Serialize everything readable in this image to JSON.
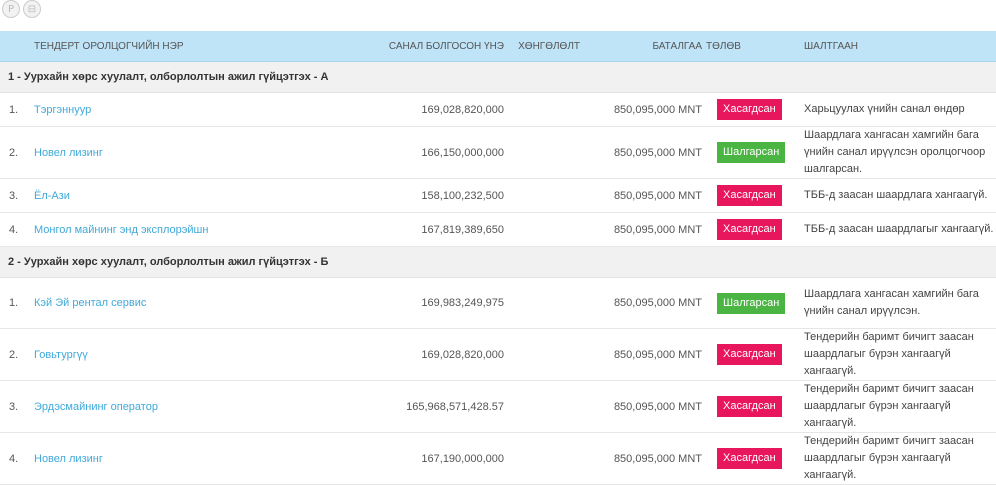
{
  "toolbar": {
    "icons": [
      {
        "name": "pdf-icon",
        "glyph": "P"
      },
      {
        "name": "document-icon",
        "glyph": "⊟"
      }
    ]
  },
  "table": {
    "headers": {
      "name": "ТЕНДЕРТ ОРОЛЦОГЧИЙН НЭР",
      "offer": "САНАЛ БОЛГОСОН ҮНЭ",
      "discount": "ХӨНГӨЛӨЛТ",
      "guarantee": "БАТАЛГАА",
      "status": "ТӨЛӨВ",
      "reason": "ШАЛТГААН"
    },
    "groups": [
      {
        "title": "1 - Уурхайн хөрс хуулалт, олборлолтын ажил гүйцэтгэх - А",
        "rows": [
          {
            "no": "1.",
            "name": "Тэргэннуур",
            "offer": "169,028,820,000",
            "discount": "",
            "guarantee": "850,095,000 MNT",
            "status": "Хасагдсан",
            "status_type": "fail",
            "reason": "Харьцуулах үнийн санал өндөр"
          },
          {
            "no": "2.",
            "name": "Новел лизинг",
            "offer": "166,150,000,000",
            "discount": "",
            "guarantee": "850,095,000 MNT",
            "status": "Шалгарсан",
            "status_type": "pass",
            "reason": "Шаардлага хангасан хамгийн бага үнийн санал ирүүлсэн оролцогчоор шалгарсан."
          },
          {
            "no": "3.",
            "name": "Ёл-Ази",
            "offer": "158,100,232,500",
            "discount": "",
            "guarantee": "850,095,000 MNT",
            "status": "Хасагдсан",
            "status_type": "fail",
            "reason": "ТББ-д заасан шаардлага хангаагүй."
          },
          {
            "no": "4.",
            "name": "Монгол майнинг энд эксплорэйшн",
            "offer": "167,819,389,650",
            "discount": "",
            "guarantee": "850,095,000 MNT",
            "status": "Хасагдсан",
            "status_type": "fail",
            "reason": "ТББ-д заасан шаардлагыг хангаагүй."
          }
        ]
      },
      {
        "title": "2 - Уурхайн хөрс хуулалт, олборлолтын ажил гүйцэтгэх - Б",
        "rows": [
          {
            "no": "1.",
            "name": "Кэй Эй рентал сервис",
            "offer": "169,983,249,975",
            "discount": "",
            "guarantee": "850,095,000 MNT",
            "status": "Шалгарсан",
            "status_type": "pass",
            "reason": "Шаардлага хангасан хамгийн бага үнийн санал ирүүлсэн."
          },
          {
            "no": "2.",
            "name": "Говьтургүү",
            "offer": "169,028,820,000",
            "discount": "",
            "guarantee": "850,095,000 MNT",
            "status": "Хасагдсан",
            "status_type": "fail",
            "reason": "Тендерийн баримт бичигт заасан шаардлагыг бүрэн хангаагүй хангаагүй."
          },
          {
            "no": "3.",
            "name": "Эрдэсмайнинг оператор",
            "offer": "165,968,571,428.57",
            "discount": "",
            "guarantee": "850,095,000 MNT",
            "status": "Хасагдсан",
            "status_type": "fail",
            "reason": "Тендерийн баримт бичигт заасан шаардлагыг бүрэн хангаагүй хангаагүй."
          },
          {
            "no": "4.",
            "name": "Новел лизинг",
            "offer": "167,190,000,000",
            "discount": "",
            "guarantee": "850,095,000 MNT",
            "status": "Хасагдсан",
            "status_type": "fail",
            "reason": "Тендерийн баримт бичигт заасан шаардлагыг бүрэн хангаагүй хангаагүй."
          }
        ]
      }
    ]
  }
}
